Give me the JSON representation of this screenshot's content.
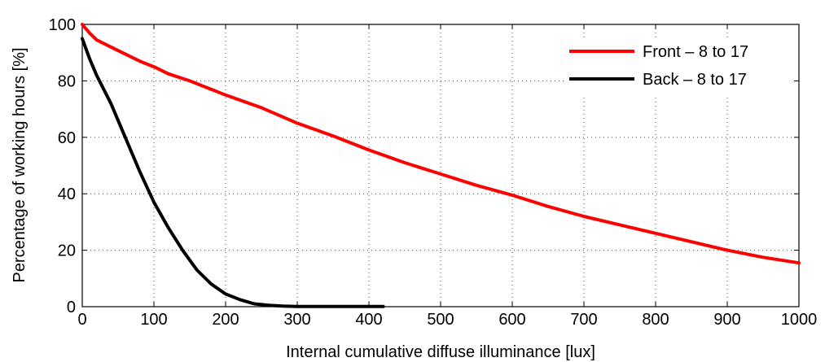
{
  "chart_data": {
    "type": "line",
    "xlabel": "Internal cumulative diffuse illuminance [lux]",
    "ylabel": "Percentage of working hours [%]",
    "xlim": [
      0,
      1000
    ],
    "ylim": [
      0,
      100
    ],
    "x_ticks": [
      0,
      100,
      200,
      300,
      400,
      500,
      600,
      700,
      800,
      900,
      1000
    ],
    "y_ticks": [
      0,
      20,
      40,
      60,
      80,
      100
    ],
    "grid": true,
    "legend_position": "top-right",
    "series": [
      {
        "name": "Front – 8 to 17",
        "color": "#ff0000",
        "points": [
          [
            0,
            100
          ],
          [
            10,
            97
          ],
          [
            20,
            94.5
          ],
          [
            40,
            92
          ],
          [
            60,
            89.5
          ],
          [
            80,
            87
          ],
          [
            100,
            85
          ],
          [
            120,
            82.5
          ],
          [
            150,
            80
          ],
          [
            200,
            75
          ],
          [
            250,
            70.5
          ],
          [
            300,
            65
          ],
          [
            350,
            60.5
          ],
          [
            400,
            55.5
          ],
          [
            450,
            51
          ],
          [
            500,
            47
          ],
          [
            550,
            43
          ],
          [
            600,
            39.5
          ],
          [
            650,
            35.5
          ],
          [
            700,
            32
          ],
          [
            750,
            29
          ],
          [
            800,
            26
          ],
          [
            850,
            23
          ],
          [
            900,
            20
          ],
          [
            950,
            17.5
          ],
          [
            1000,
            15.5
          ]
        ]
      },
      {
        "name": "Back – 8 to 17",
        "color": "#000000",
        "points": [
          [
            0,
            95
          ],
          [
            10,
            88
          ],
          [
            20,
            82
          ],
          [
            40,
            72
          ],
          [
            60,
            60
          ],
          [
            80,
            48
          ],
          [
            100,
            37
          ],
          [
            120,
            28
          ],
          [
            140,
            20
          ],
          [
            160,
            13
          ],
          [
            180,
            8
          ],
          [
            200,
            4.5
          ],
          [
            220,
            2.5
          ],
          [
            240,
            1
          ],
          [
            260,
            0.5
          ],
          [
            280,
            0.2
          ],
          [
            300,
            0.1
          ],
          [
            350,
            0.1
          ],
          [
            420,
            0.1
          ]
        ]
      }
    ]
  }
}
